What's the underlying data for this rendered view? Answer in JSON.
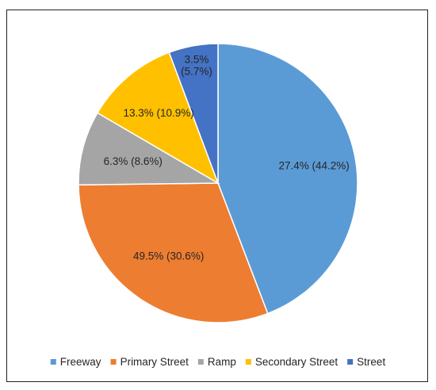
{
  "chart_data": {
    "type": "pie",
    "title": "",
    "legend_position": "bottom",
    "slices": [
      {
        "name": "Freeway",
        "value": 44.2,
        "label": "27.4% (44.2%)",
        "color": "#5B9BD5"
      },
      {
        "name": "Primary Street",
        "value": 30.6,
        "label": "49.5% (30.6%)",
        "color": "#ED7D31"
      },
      {
        "name": "Ramp",
        "value": 8.6,
        "label": "6.3% (8.6%)",
        "color": "#A5A5A5"
      },
      {
        "name": "Secondary Street",
        "value": 10.9,
        "label": "13.3% (10.9%)",
        "color": "#FFC000"
      },
      {
        "name": "Street",
        "value": 5.7,
        "label_lines": [
          "3.5%",
          "(5.7%)"
        ],
        "label": "3.5% (5.7%)",
        "color": "#4472C4"
      }
    ]
  }
}
